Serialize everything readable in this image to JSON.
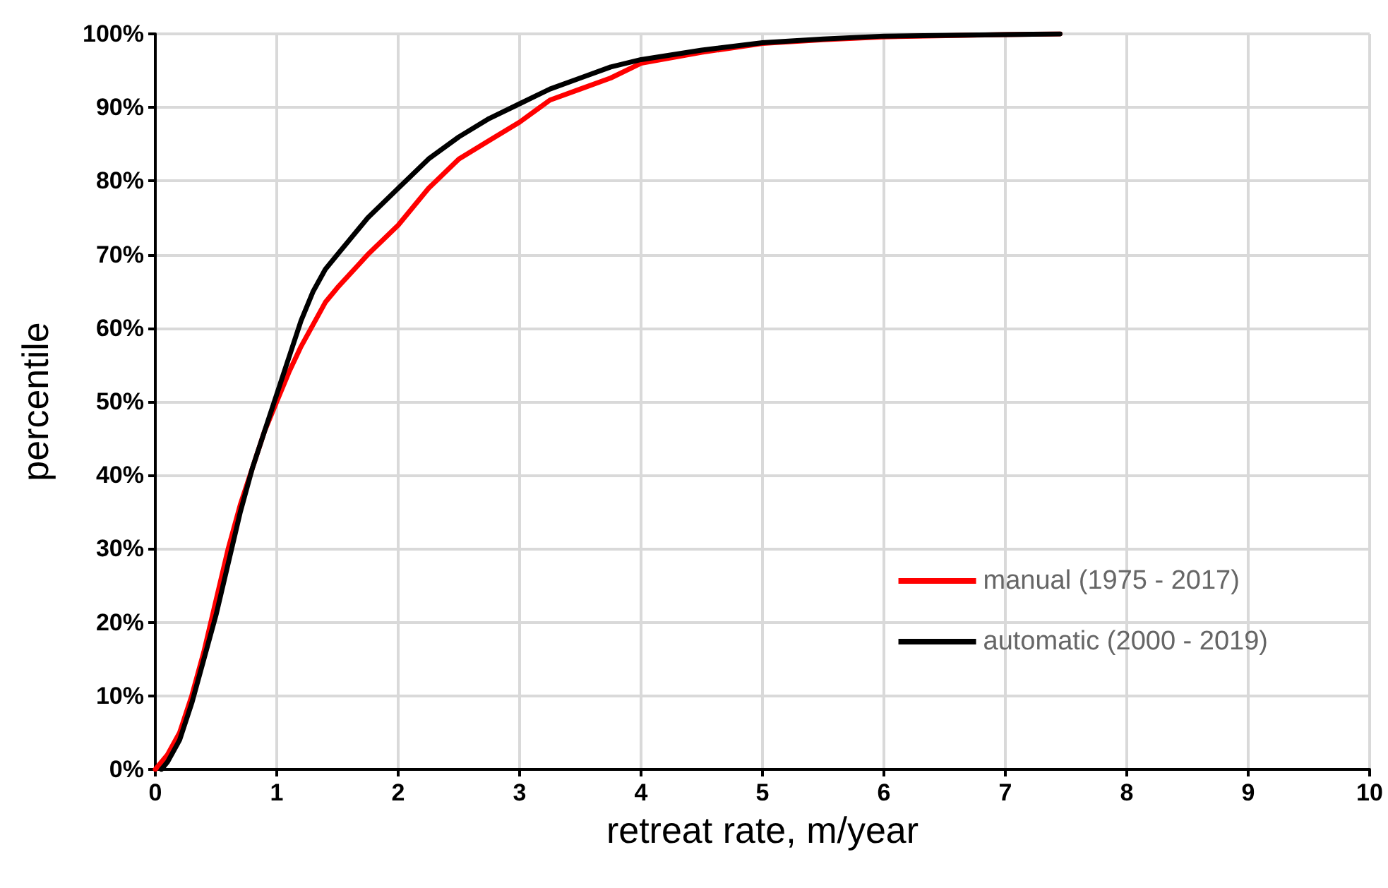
{
  "chart_data": {
    "type": "line",
    "xlabel": "retreat rate, m/year",
    "ylabel": "percentile",
    "xlim": [
      0,
      10
    ],
    "xticks": [
      0,
      1,
      2,
      3,
      4,
      5,
      6,
      7,
      8,
      9,
      10
    ],
    "ylim": [
      0,
      100
    ],
    "yticks": [
      {
        "value": 0,
        "label": "0%"
      },
      {
        "value": 10,
        "label": "10%"
      },
      {
        "value": 20,
        "label": "20%"
      },
      {
        "value": 30,
        "label": "30%"
      },
      {
        "value": 40,
        "label": "40%"
      },
      {
        "value": 50,
        "label": "50%"
      },
      {
        "value": 60,
        "label": "60%"
      },
      {
        "value": 70,
        "label": "70%"
      },
      {
        "value": 80,
        "label": "80%"
      },
      {
        "value": 90,
        "label": "90%"
      },
      {
        "value": 100,
        "label": "100%"
      }
    ],
    "grid": true,
    "legend": "bottom right",
    "marker": "none",
    "line_style": "solid",
    "series": [
      {
        "name": "manual (1975 - 2017)",
        "color": "#ff0000",
        "x": [
          0,
          0.1,
          0.2,
          0.3,
          0.4,
          0.5,
          0.6,
          0.7,
          0.8,
          0.9,
          1.0,
          1.1,
          1.2,
          1.3,
          1.4,
          1.5,
          1.75,
          2.0,
          2.25,
          2.5,
          2.75,
          3.0,
          3.25,
          3.5,
          3.75,
          4.0,
          4.5,
          5,
          5.5,
          6,
          7,
          7.45
        ],
        "values": [
          0,
          2,
          5,
          10,
          16,
          23,
          30,
          36,
          41,
          46,
          50,
          54,
          57.5,
          60.5,
          63.5,
          65.5,
          70,
          74,
          79,
          83,
          85.5,
          88,
          91,
          92.5,
          94,
          96,
          97.5,
          98.7,
          99.2,
          99.6,
          99.9,
          100
        ]
      },
      {
        "name": "automatic (2000 - 2019)",
        "color": "#000000",
        "x": [
          0.05,
          0.1,
          0.2,
          0.3,
          0.4,
          0.5,
          0.6,
          0.7,
          0.8,
          0.9,
          1.0,
          1.1,
          1.2,
          1.3,
          1.4,
          1.5,
          1.75,
          2.0,
          2.25,
          2.5,
          2.75,
          3.0,
          3.25,
          3.5,
          3.75,
          4.0,
          4.5,
          5,
          5.5,
          6,
          7,
          7.45
        ],
        "values": [
          0,
          1,
          4,
          9,
          15,
          21,
          28,
          35,
          41,
          46,
          51,
          56,
          61,
          65,
          68,
          70,
          75,
          79,
          83,
          86,
          88.5,
          90.5,
          92.5,
          94,
          95.5,
          96.5,
          97.8,
          98.8,
          99.3,
          99.7,
          99.9,
          100
        ]
      }
    ]
  }
}
